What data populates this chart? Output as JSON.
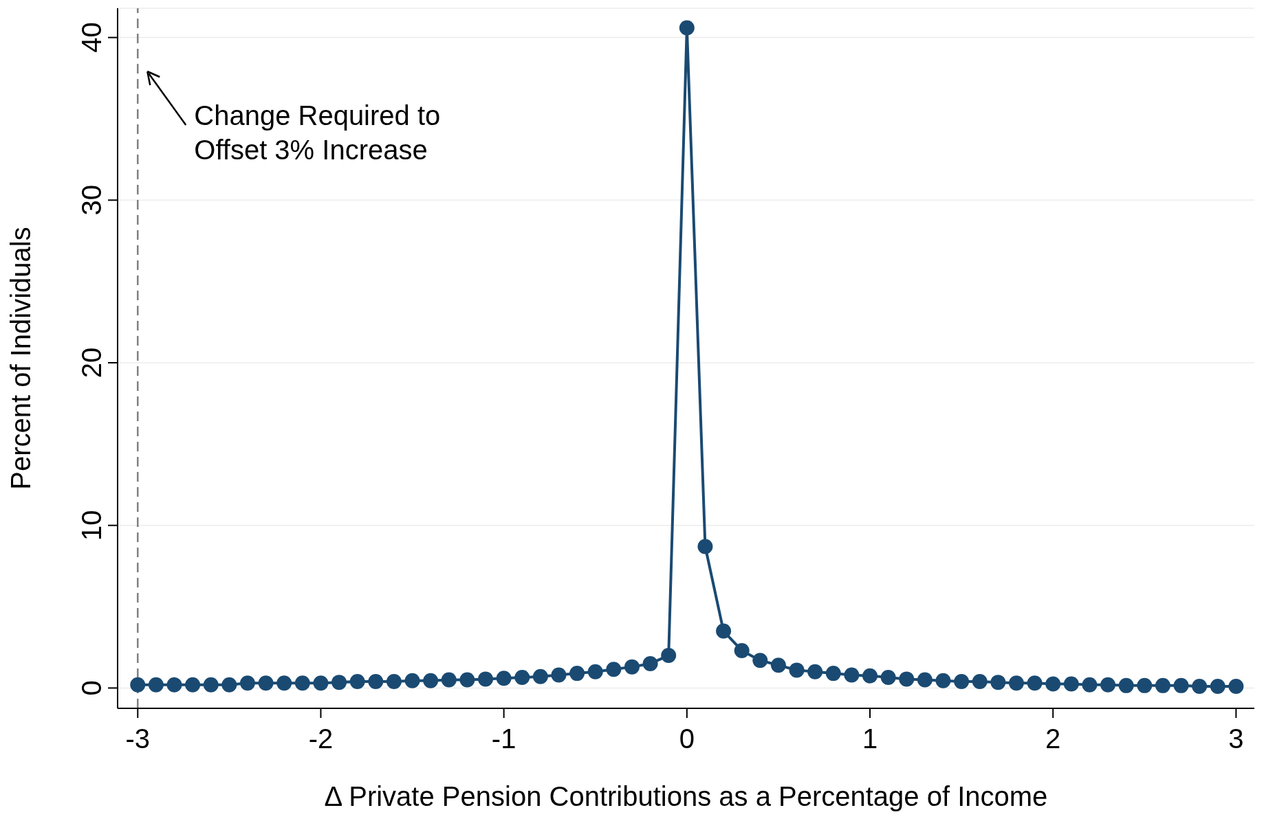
{
  "chart_data": {
    "type": "line",
    "xlabel": "Δ Private Pension Contributions as a Percentage of Income",
    "ylabel": "Percent of Individuals",
    "x": [
      -3,
      -2.9,
      -2.8,
      -2.7,
      -2.6,
      -2.5,
      -2.4,
      -2.3,
      -2.2,
      -2.1,
      -2,
      -1.9,
      -1.8,
      -1.7,
      -1.6,
      -1.5,
      -1.4,
      -1.3,
      -1.2,
      -1.1,
      -1,
      -0.9,
      -0.8,
      -0.7,
      -0.6,
      -0.5,
      -0.4,
      -0.3,
      -0.2,
      -0.1,
      0,
      0.1,
      0.2,
      0.3,
      0.4,
      0.5,
      0.6,
      0.7,
      0.8,
      0.9,
      1,
      1.1,
      1.2,
      1.3,
      1.4,
      1.5,
      1.6,
      1.7,
      1.8,
      1.9,
      2,
      2.1,
      2.2,
      2.3,
      2.4,
      2.5,
      2.6,
      2.7,
      2.8,
      2.9,
      3
    ],
    "series": [
      {
        "color": "#1a4a72",
        "values": [
          0.2,
          0.2,
          0.2,
          0.2,
          0.2,
          0.2,
          0.3,
          0.3,
          0.3,
          0.3,
          0.3,
          0.35,
          0.4,
          0.4,
          0.4,
          0.45,
          0.45,
          0.5,
          0.5,
          0.55,
          0.6,
          0.65,
          0.7,
          0.8,
          0.9,
          1.0,
          1.15,
          1.3,
          1.5,
          2.0,
          40.6,
          8.7,
          3.5,
          2.3,
          1.7,
          1.4,
          1.1,
          1.0,
          0.9,
          0.8,
          0.75,
          0.65,
          0.55,
          0.5,
          0.45,
          0.4,
          0.4,
          0.35,
          0.3,
          0.3,
          0.25,
          0.25,
          0.2,
          0.2,
          0.15,
          0.15,
          0.15,
          0.15,
          0.1,
          0.1,
          0.1
        ]
      }
    ],
    "xlim": [
      -3.11,
      3.1
    ],
    "xticks": [
      -3,
      -2,
      -1,
      0,
      1,
      2,
      3
    ],
    "ylim": [
      -1.25,
      41.8
    ],
    "yticks": [
      0,
      10,
      20,
      30,
      40
    ],
    "grid": "y",
    "marker": "circle",
    "line_style": "solid",
    "ref_lines": [
      {
        "axis": "x",
        "value": -3,
        "line_style": "dashed",
        "color": "#808080",
        "label": "Change Required to\nOffset 3% Increase"
      }
    ]
  }
}
